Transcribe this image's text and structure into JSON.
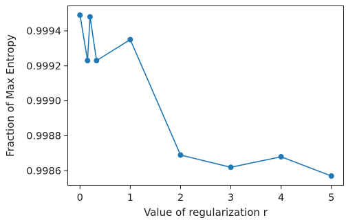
{
  "chart_data": {
    "type": "line",
    "title": "",
    "xlabel": "Value of regularization r",
    "ylabel": "Fraction of Max Entropy",
    "x": [
      0,
      0.15,
      0.2,
      0.33,
      1,
      2,
      3,
      4,
      5
    ],
    "series": [
      {
        "values": [
          0.99949,
          0.99923,
          0.99948,
          0.99923,
          0.99935,
          0.99869,
          0.99862,
          0.99868,
          0.99857
        ],
        "color": "#1f77b4",
        "marker": "circle"
      }
    ],
    "xlim": [
      -0.25,
      5.25
    ],
    "ylim": [
      0.998515,
      0.999545
    ],
    "x_ticks": [
      0,
      1,
      2,
      3,
      4,
      5
    ],
    "x_tick_labels": [
      "0",
      "1",
      "2",
      "3",
      "4",
      "5"
    ],
    "y_ticks": [
      0.9986,
      0.9988,
      0.999,
      0.9992,
      0.9994
    ],
    "y_tick_labels": [
      "0.9986",
      "0.9988",
      "0.9990",
      "0.9992",
      "0.9994"
    ],
    "grid": false,
    "legend": "none"
  }
}
